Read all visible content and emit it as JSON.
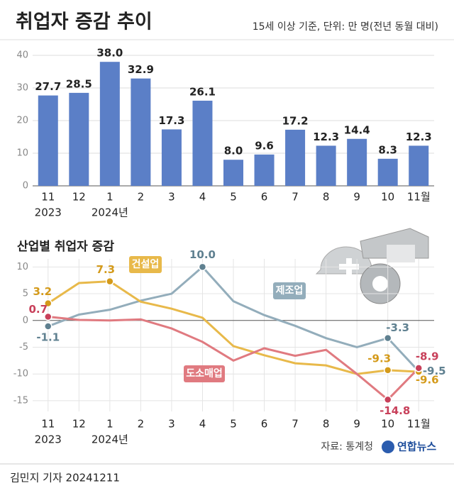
{
  "title": "취업자 증감 추이",
  "subtitle": "15세 이상 기준, 단위: 만 명(전년 동월 대비)",
  "source": "자료: 통계청",
  "logo": "연합뉴스",
  "credit": "김민지 기자  20241211",
  "chart_data": [
    {
      "type": "bar",
      "categories": [
        "11",
        "12",
        "1",
        "2",
        "3",
        "4",
        "5",
        "6",
        "7",
        "8",
        "9",
        "10",
        "11월"
      ],
      "year_labels": [
        "2023",
        null,
        "2024년",
        null,
        null,
        null,
        null,
        null,
        null,
        null,
        null,
        null,
        null
      ],
      "values": [
        27.7,
        28.5,
        38.0,
        32.9,
        17.3,
        26.1,
        8.0,
        9.6,
        17.2,
        12.3,
        14.4,
        8.3,
        12.3
      ],
      "value_labels": [
        "27.7",
        "28.5",
        "38.0",
        "32.9",
        "17.3",
        "26.1",
        "8.0",
        "9.6",
        "17.2",
        "12.3",
        "14.4",
        "8.3",
        "12.3"
      ],
      "color": "#5b7fc7",
      "ylim": [
        0,
        40
      ],
      "yticks": [
        0,
        10,
        20,
        30,
        40
      ],
      "grid": true
    },
    {
      "type": "line",
      "title": "산업별 취업자 증감",
      "categories": [
        "11",
        "12",
        "1",
        "2",
        "3",
        "4",
        "5",
        "6",
        "7",
        "8",
        "9",
        "10",
        "11월"
      ],
      "year_labels": [
        "2023",
        null,
        "2024년",
        null,
        null,
        null,
        null,
        null,
        null,
        null,
        null,
        null,
        null
      ],
      "ylim": [
        -17,
        11.5
      ],
      "yticks": [
        10,
        5,
        0,
        -5,
        -10,
        -15
      ],
      "grid": true,
      "series": [
        {
          "name": "제조업",
          "color": "#93adbb",
          "label_color": "#5f8090",
          "values": [
            -1.1,
            1.1,
            2.0,
            3.7,
            5.0,
            10.0,
            3.6,
            1.0,
            -1.0,
            -3.3,
            -5.0,
            -3.3,
            -9.5
          ],
          "value_labels": [
            "-1.1",
            null,
            null,
            null,
            null,
            "10.0",
            null,
            null,
            null,
            null,
            null,
            "-3.3",
            "-9.5"
          ]
        },
        {
          "name": "건설업",
          "color": "#e8b94a",
          "label_color": "#d49a1a",
          "values": [
            3.2,
            7.0,
            7.3,
            3.5,
            2.2,
            0.5,
            -4.8,
            -6.5,
            -8.0,
            -8.4,
            -10.0,
            -9.3,
            -9.6
          ],
          "value_labels": [
            "3.2",
            null,
            "7.3",
            null,
            null,
            null,
            null,
            null,
            null,
            null,
            null,
            "-9.3",
            "-9.6"
          ]
        },
        {
          "name": "도소매업",
          "color": "#e07a80",
          "label_color": "#c8405a",
          "values": [
            0.7,
            0.1,
            0.0,
            0.2,
            -1.5,
            -4.0,
            -7.5,
            -5.2,
            -6.6,
            -5.5,
            -10.0,
            -14.8,
            -8.9
          ],
          "value_labels": [
            "0.7",
            null,
            null,
            null,
            null,
            null,
            null,
            null,
            null,
            null,
            null,
            "-14.8",
            "-8.9"
          ]
        }
      ]
    }
  ]
}
